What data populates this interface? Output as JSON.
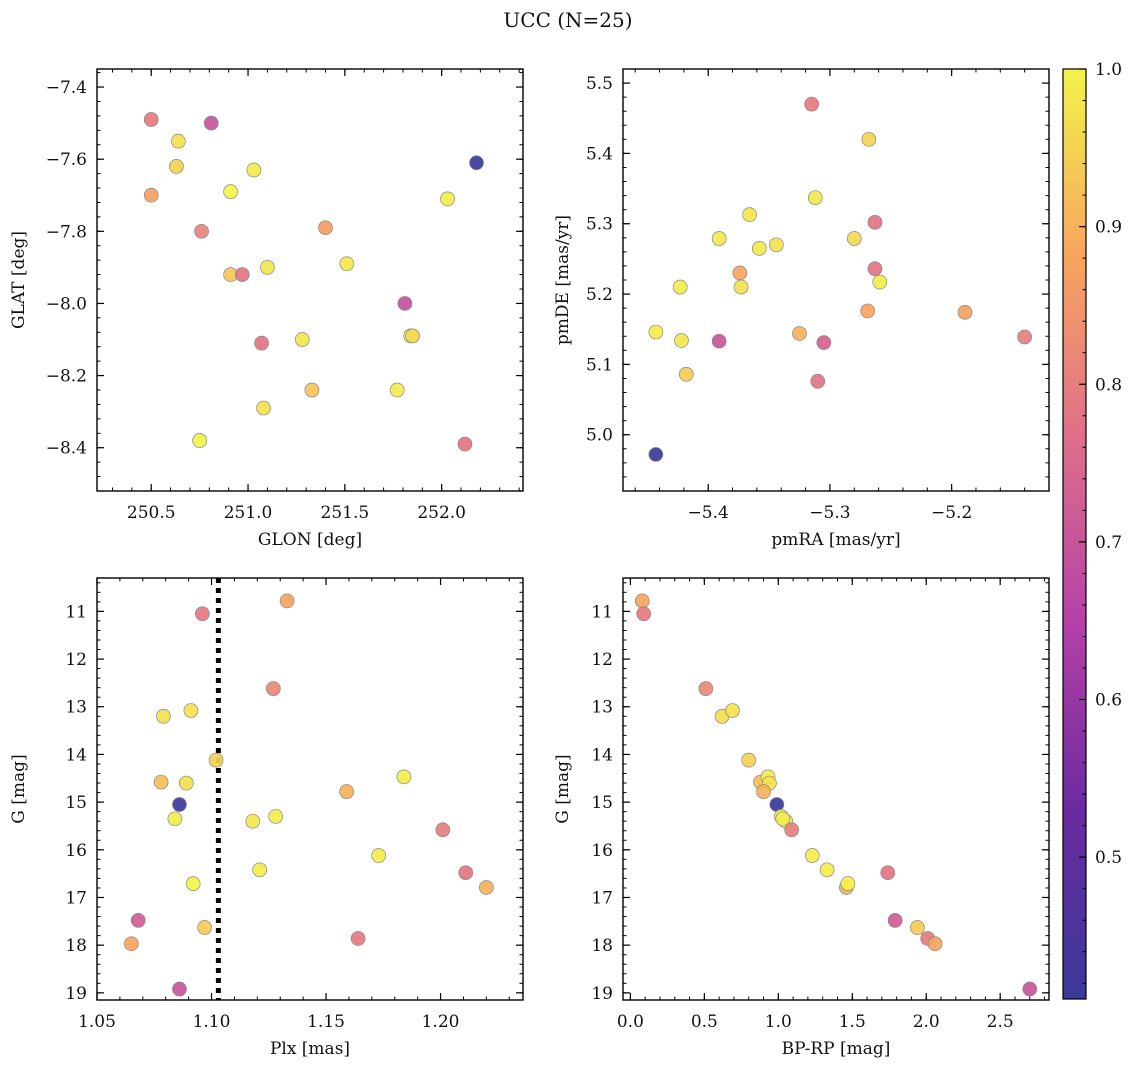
{
  "suptitle": "UCC (N=25)",
  "colorbar": {
    "range": [
      0.41,
      1.0
    ],
    "ticks": [
      0.5,
      0.6,
      0.7,
      0.8,
      0.9,
      1.0
    ],
    "tick_labels": [
      "0.5",
      "0.6",
      "0.7",
      "0.8",
      "0.9",
      "1.0"
    ],
    "colormap": "plasma"
  },
  "chart_data": [
    {
      "type": "scatter",
      "panel": "top-left",
      "xlabel": "GLON [deg]",
      "ylabel": "GLAT [deg]",
      "xlim": [
        250.22,
        252.42
      ],
      "ylim": [
        -8.52,
        -7.35
      ],
      "xticks": [
        250.5,
        251.0,
        251.5,
        252.0
      ],
      "xtick_labels": [
        "250.5",
        "251.0",
        "251.5",
        "252.0"
      ],
      "yticks": [
        -8.4,
        -8.2,
        -8.0,
        -7.8,
        -7.6,
        -7.4
      ],
      "ytick_labels": [
        "−8.4",
        "−8.2",
        "−8.0",
        "−7.8",
        "−7.6",
        "−7.4"
      ],
      "points": [
        {
          "x": 250.5,
          "y": -7.49,
          "c": 0.79
        },
        {
          "x": 250.81,
          "y": -7.5,
          "c": 0.7
        },
        {
          "x": 250.64,
          "y": -7.55,
          "c": 0.97
        },
        {
          "x": 250.63,
          "y": -7.62,
          "c": 0.95
        },
        {
          "x": 252.18,
          "y": -7.61,
          "c": 0.41
        },
        {
          "x": 251.03,
          "y": -7.63,
          "c": 0.99
        },
        {
          "x": 250.5,
          "y": -7.7,
          "c": 0.87
        },
        {
          "x": 250.91,
          "y": -7.69,
          "c": 1.0
        },
        {
          "x": 252.03,
          "y": -7.71,
          "c": 0.99
        },
        {
          "x": 250.76,
          "y": -7.8,
          "c": 0.81
        },
        {
          "x": 251.4,
          "y": -7.79,
          "c": 0.86
        },
        {
          "x": 250.91,
          "y": -7.92,
          "c": 0.93
        },
        {
          "x": 250.97,
          "y": -7.92,
          "c": 0.78
        },
        {
          "x": 251.1,
          "y": -7.9,
          "c": 0.98
        },
        {
          "x": 251.51,
          "y": -7.89,
          "c": 0.98
        },
        {
          "x": 251.81,
          "y": -8.0,
          "c": 0.69
        },
        {
          "x": 251.84,
          "y": -8.09,
          "c": 1.0
        },
        {
          "x": 251.07,
          "y": -8.11,
          "c": 0.78
        },
        {
          "x": 251.28,
          "y": -8.1,
          "c": 0.98
        },
        {
          "x": 251.33,
          "y": -8.24,
          "c": 0.93
        },
        {
          "x": 251.77,
          "y": -8.24,
          "c": 0.99
        },
        {
          "x": 251.08,
          "y": -8.29,
          "c": 0.97
        },
        {
          "x": 250.75,
          "y": -8.38,
          "c": 1.0
        },
        {
          "x": 252.12,
          "y": -8.39,
          "c": 0.78
        },
        {
          "x": 251.85,
          "y": -8.09,
          "c": 0.96
        }
      ]
    },
    {
      "type": "scatter",
      "panel": "top-right",
      "xlabel": "pmRA [mas/yr]",
      "ylabel": "pmDE [mas/yr]",
      "xlim": [
        -5.47,
        -5.12
      ],
      "ylim": [
        4.92,
        5.52
      ],
      "xticks": [
        -5.4,
        -5.3,
        -5.2
      ],
      "xtick_labels": [
        "−5.4",
        "−5.3",
        "−5.2"
      ],
      "yticks": [
        5.0,
        5.1,
        5.2,
        5.3,
        5.4,
        5.5
      ],
      "ytick_labels": [
        "5.0",
        "5.1",
        "5.2",
        "5.3",
        "5.4",
        "5.5"
      ],
      "points": [
        {
          "x": -5.315,
          "y": 5.47,
          "c": 0.79
        },
        {
          "x": -5.268,
          "y": 5.42,
          "c": 0.95
        },
        {
          "x": -5.312,
          "y": 5.337,
          "c": 0.98
        },
        {
          "x": -5.366,
          "y": 5.313,
          "c": 0.98
        },
        {
          "x": -5.263,
          "y": 5.302,
          "c": 0.78
        },
        {
          "x": -5.391,
          "y": 5.279,
          "c": 0.98
        },
        {
          "x": -5.28,
          "y": 5.279,
          "c": 0.96
        },
        {
          "x": -5.344,
          "y": 5.27,
          "c": 0.97
        },
        {
          "x": -5.358,
          "y": 5.265,
          "c": 0.98
        },
        {
          "x": -5.263,
          "y": 5.236,
          "c": 0.78
        },
        {
          "x": -5.374,
          "y": 5.23,
          "c": 0.88
        },
        {
          "x": -5.259,
          "y": 5.217,
          "c": 0.99
        },
        {
          "x": -5.423,
          "y": 5.21,
          "c": 0.99
        },
        {
          "x": -5.373,
          "y": 5.21,
          "c": 0.97
        },
        {
          "x": -5.269,
          "y": 5.176,
          "c": 0.88
        },
        {
          "x": -5.189,
          "y": 5.174,
          "c": 0.87
        },
        {
          "x": -5.443,
          "y": 5.146,
          "c": 0.99
        },
        {
          "x": -5.325,
          "y": 5.144,
          "c": 0.9
        },
        {
          "x": -5.14,
          "y": 5.139,
          "c": 0.8
        },
        {
          "x": -5.422,
          "y": 5.134,
          "c": 0.98
        },
        {
          "x": -5.391,
          "y": 5.133,
          "c": 0.7
        },
        {
          "x": -5.305,
          "y": 5.131,
          "c": 0.73
        },
        {
          "x": -5.418,
          "y": 5.086,
          "c": 0.94
        },
        {
          "x": -5.31,
          "y": 5.076,
          "c": 0.78
        },
        {
          "x": -5.443,
          "y": 4.972,
          "c": 0.41
        }
      ]
    },
    {
      "type": "scatter",
      "panel": "bottom-left",
      "xlabel": "Plx [mas]",
      "ylabel": "G [mag]",
      "xlim": [
        1.05,
        1.236
      ],
      "ylim": [
        19.15,
        10.3
      ],
      "y_inverted": true,
      "xticks": [
        1.05,
        1.1,
        1.15,
        1.2
      ],
      "xtick_labels": [
        "1.05",
        "1.10",
        "1.15",
        "1.20"
      ],
      "yticks": [
        11,
        12,
        13,
        14,
        15,
        16,
        17,
        18,
        19
      ],
      "ytick_labels": [
        "11",
        "12",
        "13",
        "14",
        "15",
        "16",
        "17",
        "18",
        "19"
      ],
      "vline": {
        "x": 1.103,
        "style": "dotted"
      },
      "points": [
        {
          "x": 1.133,
          "y": 10.78,
          "c": 0.88
        },
        {
          "x": 1.096,
          "y": 11.05,
          "c": 0.79
        },
        {
          "x": 1.127,
          "y": 12.62,
          "c": 0.82
        },
        {
          "x": 1.079,
          "y": 13.2,
          "c": 0.97
        },
        {
          "x": 1.091,
          "y": 13.08,
          "c": 0.97
        },
        {
          "x": 1.102,
          "y": 14.12,
          "c": 0.95
        },
        {
          "x": 1.078,
          "y": 14.58,
          "c": 0.92
        },
        {
          "x": 1.089,
          "y": 14.6,
          "c": 0.97
        },
        {
          "x": 1.184,
          "y": 14.47,
          "c": 0.99
        },
        {
          "x": 1.159,
          "y": 14.78,
          "c": 0.9
        },
        {
          "x": 1.086,
          "y": 15.05,
          "c": 0.41
        },
        {
          "x": 1.084,
          "y": 15.35,
          "c": 0.99
        },
        {
          "x": 1.118,
          "y": 15.4,
          "c": 0.98
        },
        {
          "x": 1.128,
          "y": 15.3,
          "c": 0.99
        },
        {
          "x": 1.201,
          "y": 15.58,
          "c": 0.8
        },
        {
          "x": 1.173,
          "y": 16.12,
          "c": 0.99
        },
        {
          "x": 1.121,
          "y": 16.42,
          "c": 0.99
        },
        {
          "x": 1.211,
          "y": 16.48,
          "c": 0.78
        },
        {
          "x": 1.092,
          "y": 16.71,
          "c": 1.0
        },
        {
          "x": 1.22,
          "y": 16.79,
          "c": 0.9
        },
        {
          "x": 1.068,
          "y": 17.48,
          "c": 0.72
        },
        {
          "x": 1.097,
          "y": 17.63,
          "c": 0.94
        },
        {
          "x": 1.065,
          "y": 17.97,
          "c": 0.88
        },
        {
          "x": 1.164,
          "y": 17.86,
          "c": 0.79
        },
        {
          "x": 1.086,
          "y": 18.92,
          "c": 0.7
        }
      ]
    },
    {
      "type": "scatter",
      "panel": "bottom-right",
      "xlabel": "BP-RP [mag]",
      "ylabel": "G [mag]",
      "xlim": [
        -0.05,
        2.83
      ],
      "ylim": [
        19.15,
        10.3
      ],
      "y_inverted": true,
      "xticks": [
        0.0,
        0.5,
        1.0,
        1.5,
        2.0,
        2.5
      ],
      "xtick_labels": [
        "0.0",
        "0.5",
        "1.0",
        "1.5",
        "2.0",
        "2.5"
      ],
      "yticks": [
        11,
        12,
        13,
        14,
        15,
        16,
        17,
        18,
        19
      ],
      "ytick_labels": [
        "11",
        "12",
        "13",
        "14",
        "15",
        "16",
        "17",
        "18",
        "19"
      ],
      "points": [
        {
          "x": 0.08,
          "y": 10.78,
          "c": 0.88
        },
        {
          "x": 0.09,
          "y": 11.05,
          "c": 0.79
        },
        {
          "x": 0.51,
          "y": 12.62,
          "c": 0.82
        },
        {
          "x": 0.62,
          "y": 13.2,
          "c": 0.97
        },
        {
          "x": 0.69,
          "y": 13.08,
          "c": 0.97
        },
        {
          "x": 0.8,
          "y": 14.12,
          "c": 0.95
        },
        {
          "x": 0.88,
          "y": 14.58,
          "c": 0.92
        },
        {
          "x": 0.93,
          "y": 14.47,
          "c": 0.99
        },
        {
          "x": 0.94,
          "y": 14.6,
          "c": 0.97
        },
        {
          "x": 0.9,
          "y": 14.78,
          "c": 0.9
        },
        {
          "x": 0.99,
          "y": 15.05,
          "c": 0.41
        },
        {
          "x": 1.02,
          "y": 15.3,
          "c": 0.99
        },
        {
          "x": 1.05,
          "y": 15.4,
          "c": 0.98
        },
        {
          "x": 1.03,
          "y": 15.35,
          "c": 0.99
        },
        {
          "x": 1.09,
          "y": 15.58,
          "c": 0.8
        },
        {
          "x": 1.23,
          "y": 16.12,
          "c": 0.99
        },
        {
          "x": 1.33,
          "y": 16.42,
          "c": 0.99
        },
        {
          "x": 1.46,
          "y": 16.79,
          "c": 0.9
        },
        {
          "x": 1.47,
          "y": 16.71,
          "c": 1.0
        },
        {
          "x": 1.74,
          "y": 16.48,
          "c": 0.78
        },
        {
          "x": 1.79,
          "y": 17.48,
          "c": 0.72
        },
        {
          "x": 1.94,
          "y": 17.63,
          "c": 0.94
        },
        {
          "x": 2.01,
          "y": 17.86,
          "c": 0.79
        },
        {
          "x": 2.06,
          "y": 17.97,
          "c": 0.88
        },
        {
          "x": 2.7,
          "y": 18.92,
          "c": 0.7
        }
      ]
    }
  ]
}
